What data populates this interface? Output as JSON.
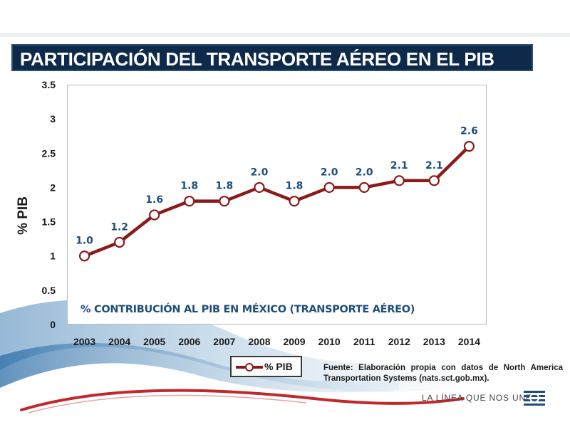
{
  "title": "PARTICIPACIÓN  DEL TRANSPORTE AÉREO EN EL PIB",
  "caption": "% CONTRIBUCIÓN AL PIB EN MÉXICO (TRANSPORTE AÉREO)",
  "source_text": "Fuente: Elaboración propia con datos de North America Transportation Systems (nats.sct.gob.mx).",
  "slogan": "LA LÍNEA QUE NOS UNE",
  "colors": {
    "series": "#8b1a1a",
    "data_label": "#1f4e79",
    "title_bg": "#0e2a4a"
  },
  "chart_data": {
    "type": "line",
    "title": "PARTICIPACIÓN  DEL TRANSPORTE AÉREO EN EL PIB",
    "xlabel": "",
    "ylabel": "% PIB",
    "ylim": [
      0,
      3.5
    ],
    "yticks": [
      "0",
      "0.5",
      "1",
      "1.5",
      "2",
      "2.5",
      "3",
      "3.5"
    ],
    "categories": [
      "2003",
      "2004",
      "2005",
      "2006",
      "2007",
      "2008",
      "2009",
      "2010",
      "2011",
      "2012",
      "2013",
      "2014"
    ],
    "series": [
      {
        "name": "% PIB",
        "values": [
          1.0,
          1.2,
          1.6,
          1.8,
          1.8,
          2.0,
          1.8,
          2.0,
          2.0,
          2.1,
          2.1,
          2.6
        ],
        "labels": [
          "1.0",
          "1.2",
          "1.6",
          "1.8",
          "1.8",
          "2.0",
          "1.8",
          "2.0",
          "2.0",
          "2.1",
          "2.1",
          "2.6"
        ]
      }
    ],
    "legend": "bottom",
    "grid": false
  }
}
